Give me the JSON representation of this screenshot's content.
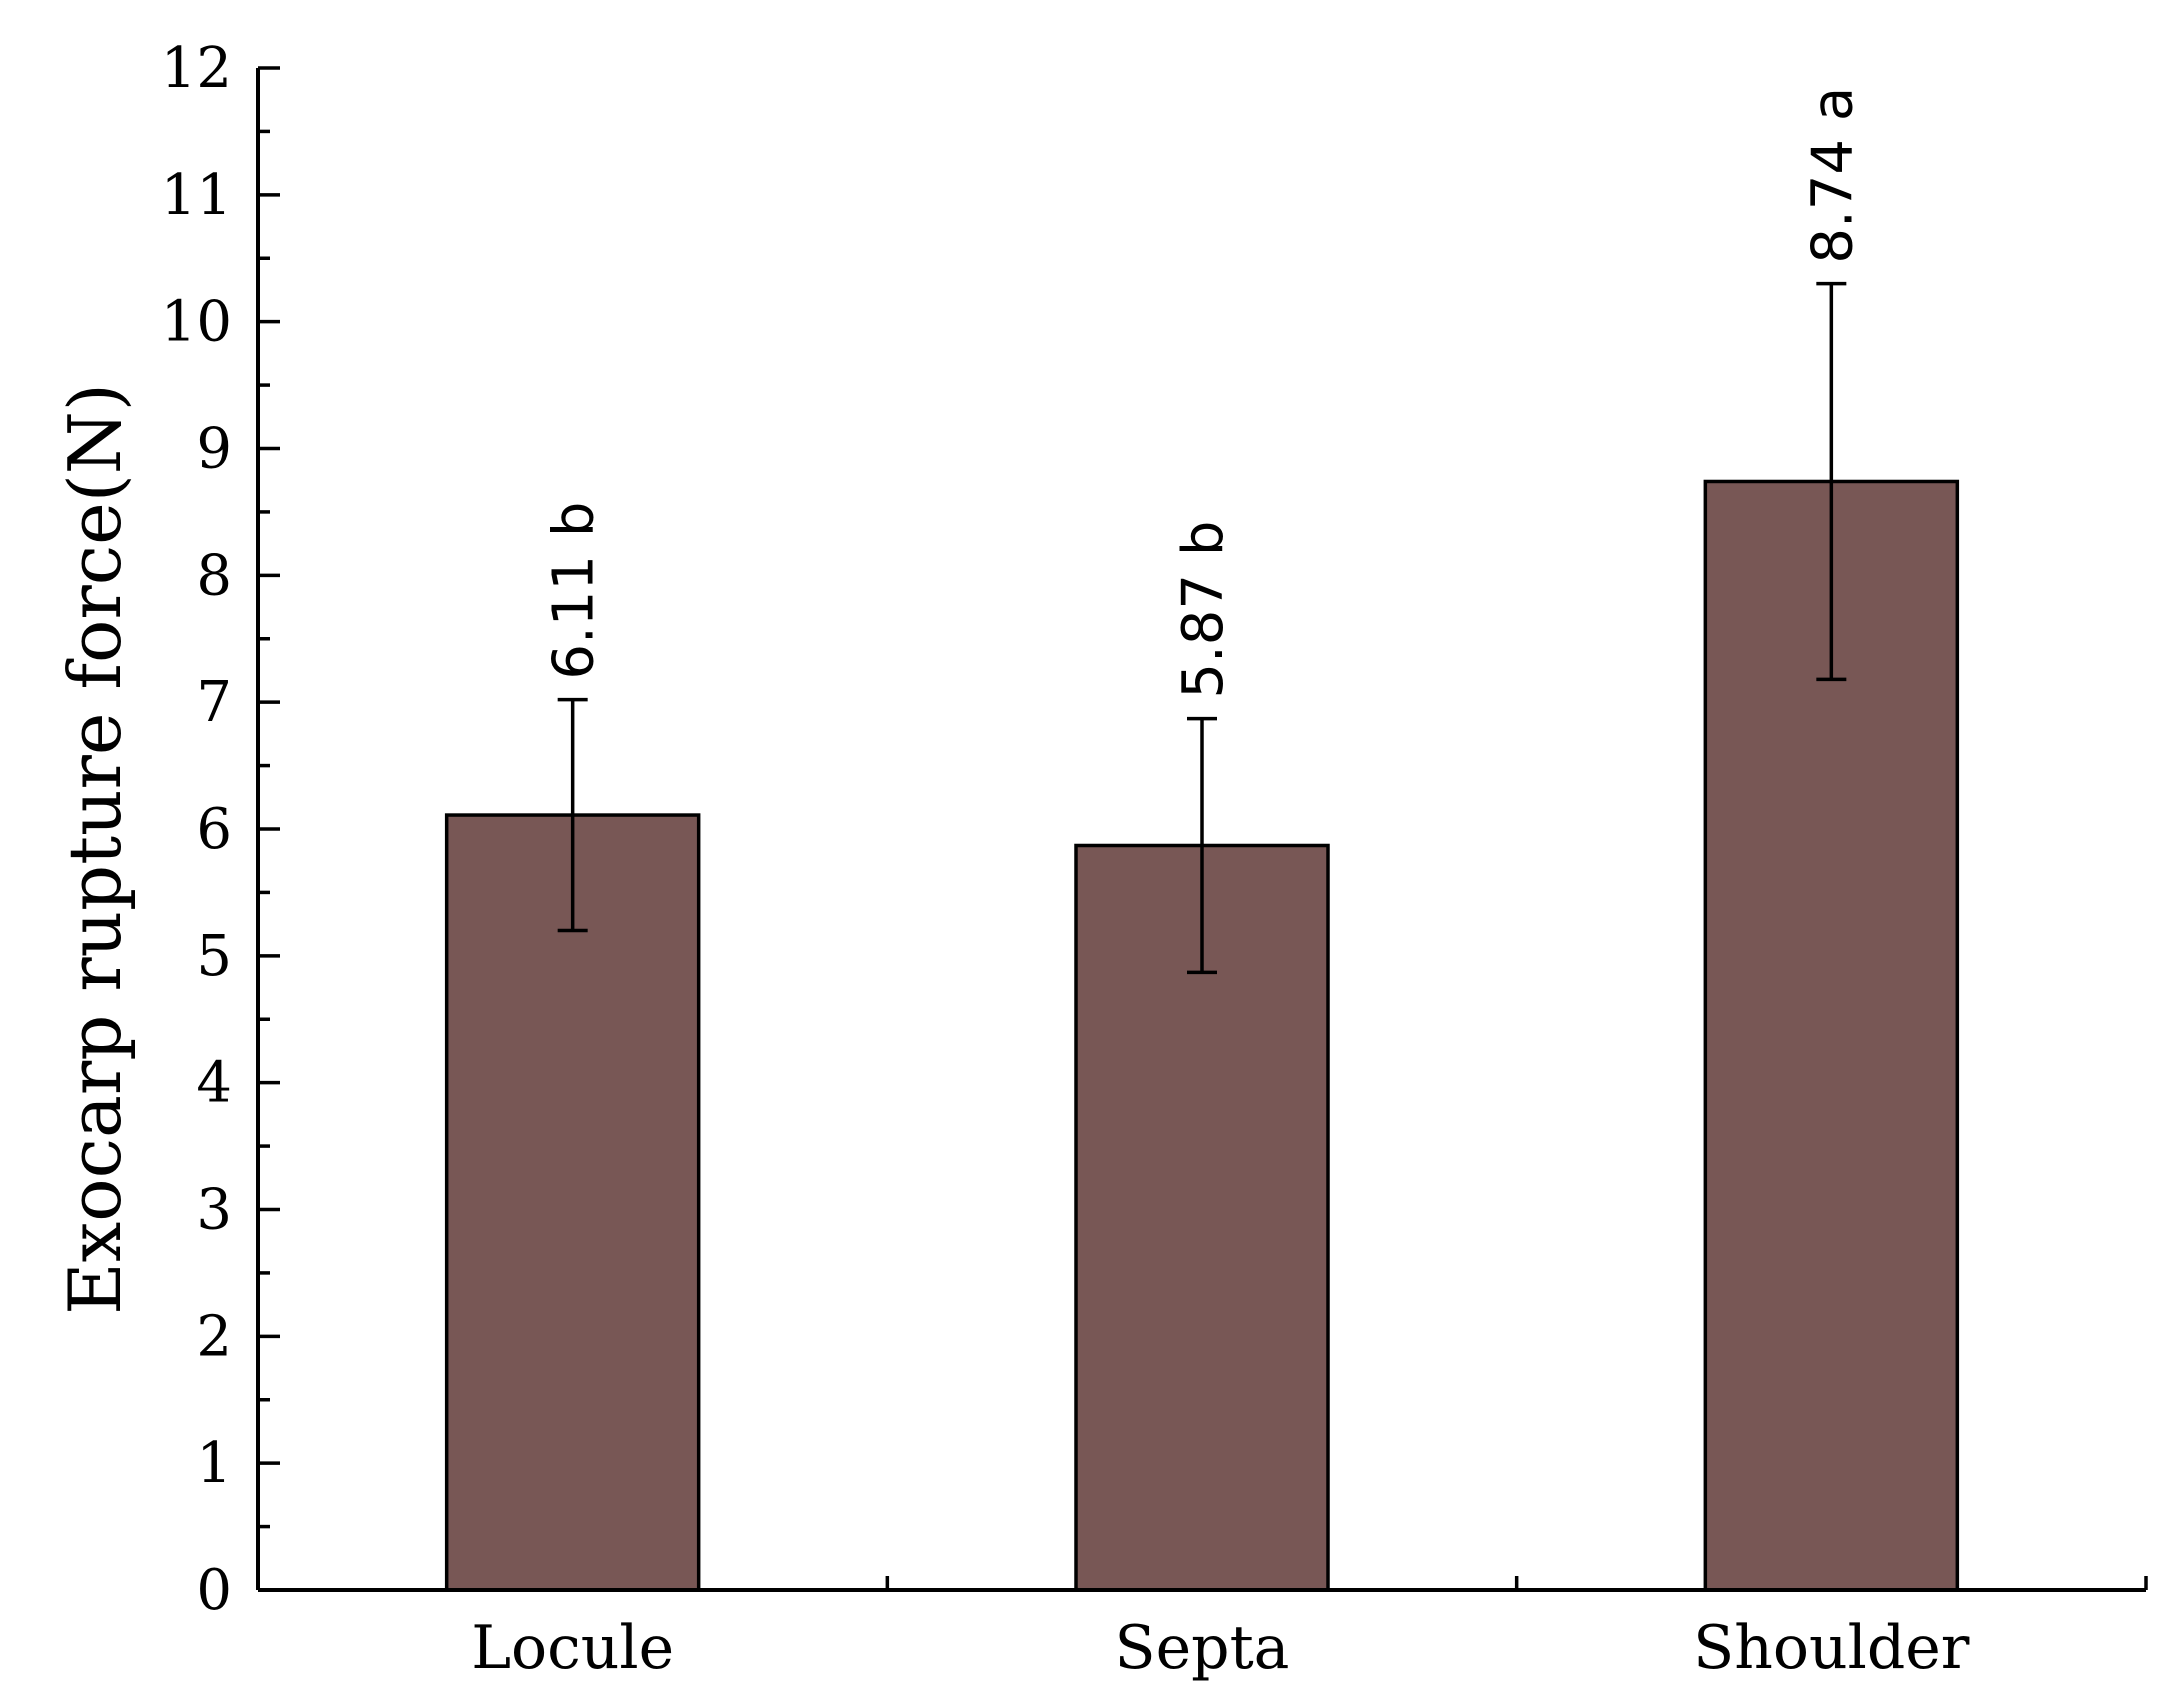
{
  "chart_data": {
    "type": "bar",
    "title": "",
    "xlabel": "",
    "ylabel": "Exocarp rupture force(N)",
    "ylim": [
      0,
      12
    ],
    "yticks": [
      0,
      1,
      2,
      3,
      4,
      5,
      6,
      7,
      8,
      9,
      10,
      11,
      12
    ],
    "categories": [
      "Locule",
      "Septa",
      "Shoulder"
    ],
    "values": [
      6.11,
      5.87,
      8.74
    ],
    "error_upper": [
      7.02,
      6.87,
      10.3
    ],
    "error_lower": [
      5.2,
      4.87,
      7.18
    ],
    "data_labels": [
      "6.11 b",
      "5.87 b",
      "8.74 a"
    ],
    "bar_color": "#785755",
    "grid": false,
    "legend": "none"
  }
}
